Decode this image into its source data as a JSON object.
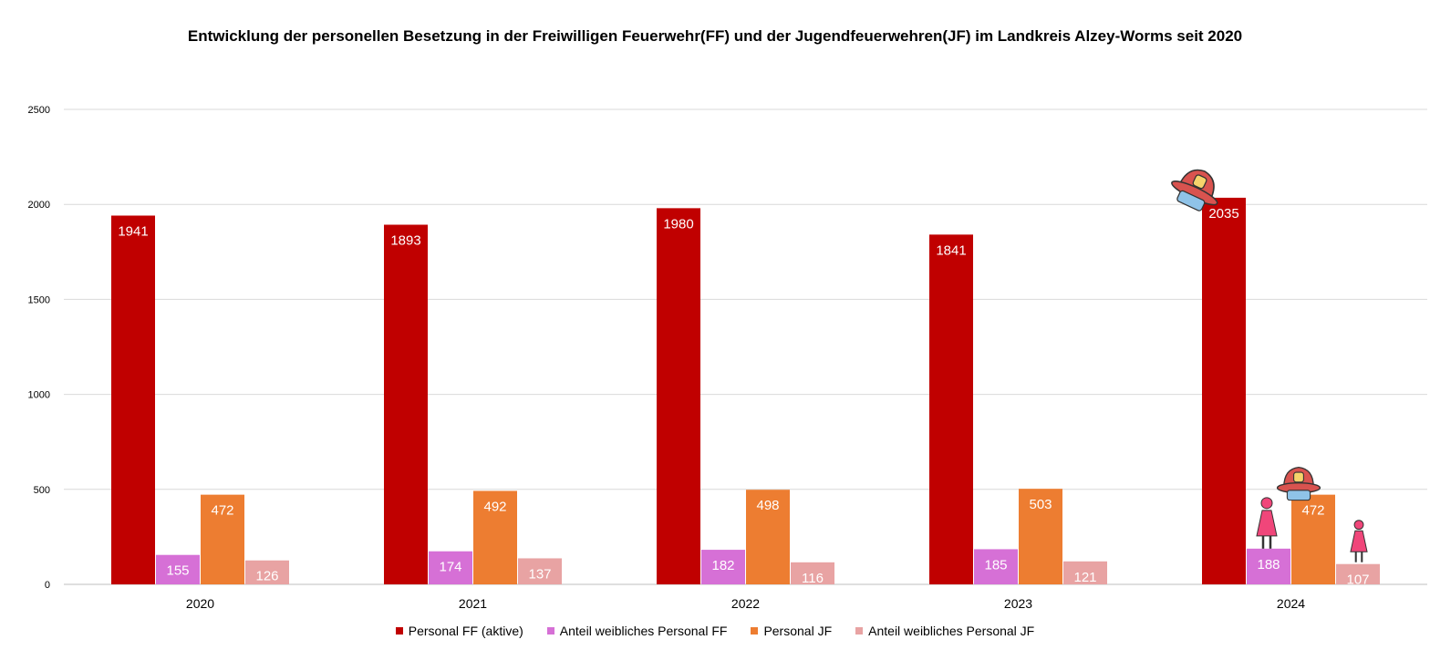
{
  "chart_data": {
    "type": "bar",
    "title": "Entwicklung der personellen Besetzung in der Freiwilligen Feuerwehr(FF) und der Jugendfeuerwehren(JF) im Landkreis Alzey-Worms seit 2020",
    "categories": [
      "2020",
      "2021",
      "2022",
      "2023",
      "2024"
    ],
    "series": [
      {
        "name": "Personal FF (aktive)",
        "color": "#c00000",
        "values": [
          1941,
          1893,
          1980,
          1841,
          2035
        ]
      },
      {
        "name": "Anteil weibliches Personal FF",
        "color": "#d670d6",
        "values": [
          155,
          174,
          182,
          185,
          188
        ]
      },
      {
        "name": "Personal JF",
        "color": "#ed7d31",
        "values": [
          472,
          492,
          498,
          503,
          472
        ]
      },
      {
        "name": "Anteil weibliches Personal JF",
        "color": "#e8a3a3",
        "values": [
          126,
          137,
          116,
          121,
          107
        ]
      }
    ],
    "ylim": [
      0,
      2500
    ],
    "yticks": [
      "0",
      "500",
      "1000",
      "1500",
      "2000",
      "2500"
    ],
    "grid": true,
    "legend_position": "bottom",
    "xlabel": "",
    "ylabel": ""
  },
  "decorations": {
    "helmet_icon_color": "#d9534f",
    "female_icon_color": "#f0467a"
  }
}
